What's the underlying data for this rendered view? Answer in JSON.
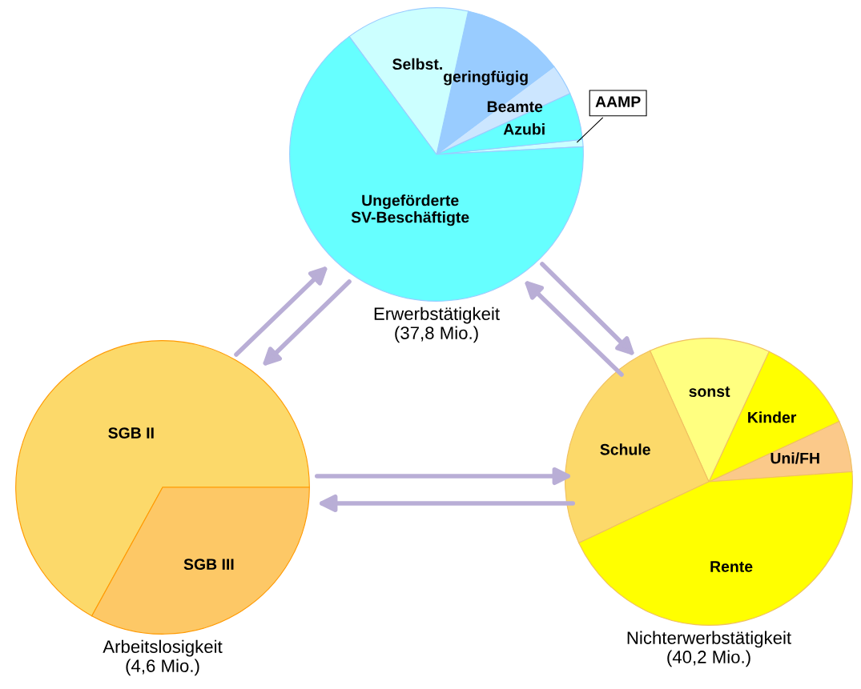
{
  "chart_data": [
    {
      "type": "pie",
      "title": "Erwerbstätigkeit\n(37,8 Mio.)",
      "categories": [
        "AAMP",
        "Azubi",
        "Beamte",
        "geringfügig",
        "Selbst.",
        "Ungeförderte\nSV-Beschäftigte"
      ],
      "values": [
        0.8,
        5.2,
        3.4,
        11.3,
        13.6,
        65.7
      ],
      "colors": [
        "#ccffff",
        "#66ffff",
        "#cce6ff",
        "#99ccff",
        "#ccffff",
        "#66ffff"
      ]
    },
    {
      "type": "pie",
      "title": "Arbeitslosigkeit\n(4,6 Mio.)",
      "categories": [
        "SGB II",
        "SGB III"
      ],
      "values": [
        67,
        33
      ],
      "colors": [
        "#fcd96a",
        "#fdc866"
      ]
    },
    {
      "type": "pie",
      "title": "Nichterwerbstätigkeit\n(40,2 Mio.)",
      "categories": [
        "Uni/FH",
        "Kinder",
        "sonst",
        "Schule",
        "Rente"
      ],
      "values": [
        5.8,
        11.2,
        13.6,
        25.3,
        44.1
      ],
      "colors": [
        "#fbc98a",
        "#ffff00",
        "#ffff80",
        "#fcd96a",
        "#ffff00"
      ]
    }
  ]
}
